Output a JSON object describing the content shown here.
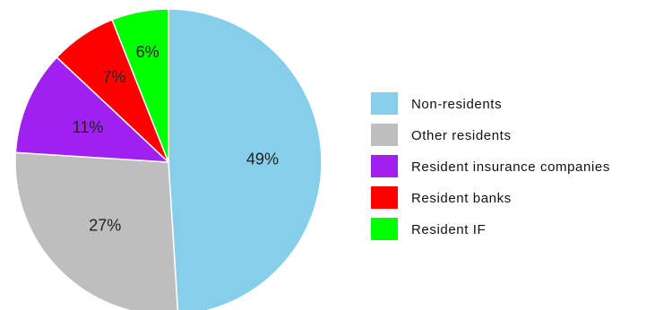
{
  "chart_data": {
    "type": "pie",
    "title": "",
    "slices": [
      {
        "label": "Non-residents",
        "value": 49,
        "display": "49%",
        "color": "#87CEEB"
      },
      {
        "label": "Other residents",
        "value": 27,
        "display": "27%",
        "color": "#BEBEBE"
      },
      {
        "label": "Resident insurance companies",
        "value": 11,
        "display": "11%",
        "color": "#A020F0"
      },
      {
        "label": "Resident banks",
        "value": 7,
        "display": "7%",
        "color": "#FF0000"
      },
      {
        "label": "Resident IF",
        "value": 6,
        "display": "6%",
        "color": "#00FF00"
      }
    ],
    "start_angle": "12 o'clock",
    "direction": "clockwise",
    "legend_position": "right"
  }
}
